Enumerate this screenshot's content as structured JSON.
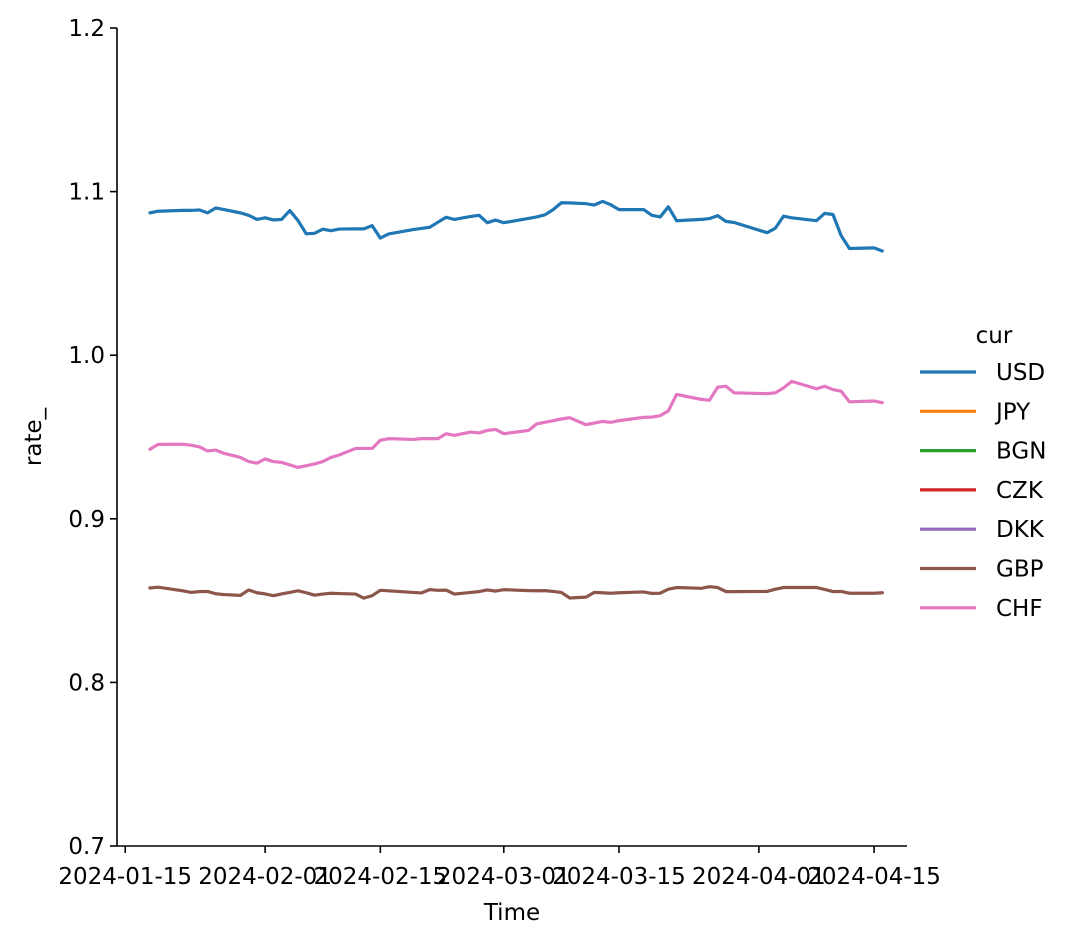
{
  "chart_data": {
    "type": "line",
    "title": "",
    "xlabel": "Time",
    "ylabel": "rate_",
    "ylim": [
      0.7,
      1.2
    ],
    "xlim": [
      "2024-01-14",
      "2024-04-19"
    ],
    "yticks": [
      0.7,
      0.8,
      0.9,
      1.0,
      1.1,
      1.2
    ],
    "ytick_labels": [
      "0.7",
      "0.8",
      "0.9",
      "1.0",
      "1.1",
      "1.2"
    ],
    "xticks": [
      "2024-01-15",
      "2024-02-01",
      "2024-02-15",
      "2024-03-01",
      "2024-03-15",
      "2024-04-01",
      "2024-04-15"
    ],
    "xtick_labels": [
      "2024-01-15",
      "2024-02-01",
      "2024-02-15",
      "2024-03-01",
      "2024-03-15",
      "2024-04-01",
      "2024-04-15"
    ],
    "grid": false,
    "legend": {
      "title": "cur",
      "position": "right"
    },
    "series": [
      {
        "name": "USD",
        "color": "#1f77b4",
        "points": [
          [
            "2024-01-18",
            1.087
          ],
          [
            "2024-01-19",
            1.088
          ],
          [
            "2024-01-22",
            1.0885
          ],
          [
            "2024-01-23",
            1.0885
          ],
          [
            "2024-01-24",
            1.0888
          ],
          [
            "2024-01-25",
            1.087
          ],
          [
            "2024-01-26",
            1.09
          ],
          [
            "2024-01-27",
            1.089
          ],
          [
            "2024-01-29",
            1.087
          ],
          [
            "2024-01-30",
            1.0855
          ],
          [
            "2024-01-31",
            1.083
          ],
          [
            "2024-02-01",
            1.084
          ],
          [
            "2024-02-02",
            1.0827
          ],
          [
            "2024-02-03",
            1.083
          ],
          [
            "2024-02-04",
            1.0884
          ],
          [
            "2024-02-05",
            1.0823
          ],
          [
            "2024-02-06",
            1.0742
          ],
          [
            "2024-02-07",
            1.0745
          ],
          [
            "2024-02-08",
            1.077
          ],
          [
            "2024-02-09",
            1.0761
          ],
          [
            "2024-02-10",
            1.0771
          ],
          [
            "2024-02-12",
            1.0772
          ],
          [
            "2024-02-13",
            1.0772
          ],
          [
            "2024-02-14",
            1.0792
          ],
          [
            "2024-02-15",
            1.0716
          ],
          [
            "2024-02-16",
            1.0741
          ],
          [
            "2024-02-19",
            1.0768
          ],
          [
            "2024-02-20",
            1.0775
          ],
          [
            "2024-02-21",
            1.0782
          ],
          [
            "2024-02-22",
            1.0813
          ],
          [
            "2024-02-23",
            1.0843
          ],
          [
            "2024-02-24",
            1.083
          ],
          [
            "2024-02-26",
            1.0848
          ],
          [
            "2024-02-27",
            1.0855
          ],
          [
            "2024-02-28",
            1.081
          ],
          [
            "2024-02-29",
            1.0826
          ],
          [
            "2024-03-01",
            1.081
          ],
          [
            "2024-03-04",
            1.0836
          ],
          [
            "2024-03-05",
            1.0845
          ],
          [
            "2024-03-06",
            1.0858
          ],
          [
            "2024-03-07",
            1.089
          ],
          [
            "2024-03-08",
            1.0932
          ],
          [
            "2024-03-09",
            1.0931
          ],
          [
            "2024-03-11",
            1.0926
          ],
          [
            "2024-03-12",
            1.0918
          ],
          [
            "2024-03-13",
            1.094
          ],
          [
            "2024-03-14",
            1.092
          ],
          [
            "2024-03-15",
            1.089
          ],
          [
            "2024-03-18",
            1.089
          ],
          [
            "2024-03-19",
            1.0855
          ],
          [
            "2024-03-20",
            1.0845
          ],
          [
            "2024-03-21",
            1.0907
          ],
          [
            "2024-03-22",
            1.0822
          ],
          [
            "2024-03-25",
            1.083
          ],
          [
            "2024-03-26",
            1.0835
          ],
          [
            "2024-03-27",
            1.0853
          ],
          [
            "2024-03-28",
            1.0818
          ],
          [
            "2024-03-29",
            1.0811
          ],
          [
            "2024-04-02",
            1.0749
          ],
          [
            "2024-04-03",
            1.0776
          ],
          [
            "2024-04-04",
            1.085
          ],
          [
            "2024-04-05",
            1.084
          ],
          [
            "2024-04-08",
            1.0822
          ],
          [
            "2024-04-09",
            1.0867
          ],
          [
            "2024-04-10",
            1.086
          ],
          [
            "2024-04-11",
            1.0731
          ],
          [
            "2024-04-12",
            1.0652
          ],
          [
            "2024-04-15",
            1.0656
          ],
          [
            "2024-04-16",
            1.0637
          ]
        ]
      },
      {
        "name": "JPY",
        "color": "#ff7f0e",
        "points": []
      },
      {
        "name": "BGN",
        "color": "#2ca02c",
        "points": []
      },
      {
        "name": "CZK",
        "color": "#d62728",
        "points": []
      },
      {
        "name": "DKK",
        "color": "#9467bd",
        "points": []
      },
      {
        "name": "GBP",
        "color": "#8c564b",
        "points": [
          [
            "2024-01-18",
            0.8577
          ],
          [
            "2024-01-19",
            0.8582
          ],
          [
            "2024-01-22",
            0.856
          ],
          [
            "2024-01-23",
            0.855
          ],
          [
            "2024-01-24",
            0.8555
          ],
          [
            "2024-01-25",
            0.8556
          ],
          [
            "2024-01-26",
            0.8542
          ],
          [
            "2024-01-27",
            0.8537
          ],
          [
            "2024-01-29",
            0.8532
          ],
          [
            "2024-01-30",
            0.8565
          ],
          [
            "2024-01-31",
            0.8548
          ],
          [
            "2024-02-01",
            0.8541
          ],
          [
            "2024-02-02",
            0.853
          ],
          [
            "2024-02-03",
            0.8541
          ],
          [
            "2024-02-05",
            0.856
          ],
          [
            "2024-02-06",
            0.8548
          ],
          [
            "2024-02-07",
            0.8533
          ],
          [
            "2024-02-08",
            0.854
          ],
          [
            "2024-02-09",
            0.8545
          ],
          [
            "2024-02-10",
            0.8543
          ],
          [
            "2024-02-12",
            0.854
          ],
          [
            "2024-02-13",
            0.8515
          ],
          [
            "2024-02-14",
            0.853
          ],
          [
            "2024-02-15",
            0.8563
          ],
          [
            "2024-02-19",
            0.855
          ],
          [
            "2024-02-20",
            0.8547
          ],
          [
            "2024-02-21",
            0.8567
          ],
          [
            "2024-02-22",
            0.8563
          ],
          [
            "2024-02-23",
            0.8564
          ],
          [
            "2024-02-24",
            0.854
          ],
          [
            "2024-02-26",
            0.855
          ],
          [
            "2024-02-27",
            0.8555
          ],
          [
            "2024-02-28",
            0.8565
          ],
          [
            "2024-02-29",
            0.8558
          ],
          [
            "2024-03-01",
            0.8567
          ],
          [
            "2024-03-04",
            0.8561
          ],
          [
            "2024-03-05",
            0.856
          ],
          [
            "2024-03-06",
            0.8561
          ],
          [
            "2024-03-07",
            0.8556
          ],
          [
            "2024-03-08",
            0.855
          ],
          [
            "2024-03-09",
            0.8516
          ],
          [
            "2024-03-11",
            0.8521
          ],
          [
            "2024-03-12",
            0.855
          ],
          [
            "2024-03-13",
            0.8548
          ],
          [
            "2024-03-14",
            0.8545
          ],
          [
            "2024-03-15",
            0.8548
          ],
          [
            "2024-03-18",
            0.8553
          ],
          [
            "2024-03-19",
            0.8544
          ],
          [
            "2024-03-20",
            0.8545
          ],
          [
            "2024-03-21",
            0.857
          ],
          [
            "2024-03-22",
            0.858
          ],
          [
            "2024-03-25",
            0.8575
          ],
          [
            "2024-03-26",
            0.8585
          ],
          [
            "2024-03-27",
            0.858
          ],
          [
            "2024-03-28",
            0.8555
          ],
          [
            "2024-03-29",
            0.8555
          ],
          [
            "2024-04-02",
            0.8556
          ],
          [
            "2024-04-03",
            0.857
          ],
          [
            "2024-04-04",
            0.858
          ],
          [
            "2024-04-05",
            0.858
          ],
          [
            "2024-04-08",
            0.858
          ],
          [
            "2024-04-09",
            0.8568
          ],
          [
            "2024-04-10",
            0.8555
          ],
          [
            "2024-04-11",
            0.8556
          ],
          [
            "2024-04-12",
            0.8545
          ],
          [
            "2024-04-15",
            0.8545
          ],
          [
            "2024-04-16",
            0.8548
          ]
        ]
      },
      {
        "name": "CHF",
        "color": "#e377c2",
        "points": [
          [
            "2024-01-18",
            0.9425
          ],
          [
            "2024-01-19",
            0.9455
          ],
          [
            "2024-01-22",
            0.9456
          ],
          [
            "2024-01-23",
            0.945
          ],
          [
            "2024-01-24",
            0.944
          ],
          [
            "2024-01-25",
            0.9415
          ],
          [
            "2024-01-26",
            0.942
          ],
          [
            "2024-01-27",
            0.94
          ],
          [
            "2024-01-29",
            0.9375
          ],
          [
            "2024-01-30",
            0.935
          ],
          [
            "2024-01-31",
            0.934
          ],
          [
            "2024-02-01",
            0.9366
          ],
          [
            "2024-02-02",
            0.935
          ],
          [
            "2024-02-03",
            0.9345
          ],
          [
            "2024-02-05",
            0.9314
          ],
          [
            "2024-02-06",
            0.9325
          ],
          [
            "2024-02-07",
            0.9335
          ],
          [
            "2024-02-08",
            0.935
          ],
          [
            "2024-02-09",
            0.9375
          ],
          [
            "2024-02-10",
            0.939
          ],
          [
            "2024-02-12",
            0.943
          ],
          [
            "2024-02-13",
            0.943
          ],
          [
            "2024-02-14",
            0.943
          ],
          [
            "2024-02-15",
            0.948
          ],
          [
            "2024-02-16",
            0.949
          ],
          [
            "2024-02-19",
            0.9485
          ],
          [
            "2024-02-20",
            0.949
          ],
          [
            "2024-02-21",
            0.949
          ],
          [
            "2024-02-22",
            0.949
          ],
          [
            "2024-02-23",
            0.952
          ],
          [
            "2024-02-24",
            0.951
          ],
          [
            "2024-02-26",
            0.953
          ],
          [
            "2024-02-27",
            0.9525
          ],
          [
            "2024-02-28",
            0.954
          ],
          [
            "2024-02-29",
            0.9546
          ],
          [
            "2024-03-01",
            0.952
          ],
          [
            "2024-03-04",
            0.954
          ],
          [
            "2024-03-05",
            0.958
          ],
          [
            "2024-03-06",
            0.959
          ],
          [
            "2024-03-07",
            0.96
          ],
          [
            "2024-03-08",
            0.961
          ],
          [
            "2024-03-09",
            0.9618
          ],
          [
            "2024-03-11",
            0.9575
          ],
          [
            "2024-03-12",
            0.9585
          ],
          [
            "2024-03-13",
            0.9595
          ],
          [
            "2024-03-14",
            0.959
          ],
          [
            "2024-03-15",
            0.96
          ],
          [
            "2024-03-18",
            0.962
          ],
          [
            "2024-03-19",
            0.9622
          ],
          [
            "2024-03-20",
            0.963
          ],
          [
            "2024-03-21",
            0.966
          ],
          [
            "2024-03-22",
            0.976
          ],
          [
            "2024-03-25",
            0.973
          ],
          [
            "2024-03-26",
            0.9725
          ],
          [
            "2024-03-27",
            0.9805
          ],
          [
            "2024-03-28",
            0.981
          ],
          [
            "2024-03-29",
            0.977
          ],
          [
            "2024-04-02",
            0.9765
          ],
          [
            "2024-04-03",
            0.977
          ],
          [
            "2024-04-04",
            0.98
          ],
          [
            "2024-04-05",
            0.984
          ],
          [
            "2024-04-08",
            0.9795
          ],
          [
            "2024-04-09",
            0.981
          ],
          [
            "2024-04-10",
            0.979
          ],
          [
            "2024-04-11",
            0.978
          ],
          [
            "2024-04-12",
            0.9715
          ],
          [
            "2024-04-15",
            0.972
          ],
          [
            "2024-04-16",
            0.971
          ]
        ]
      }
    ]
  }
}
